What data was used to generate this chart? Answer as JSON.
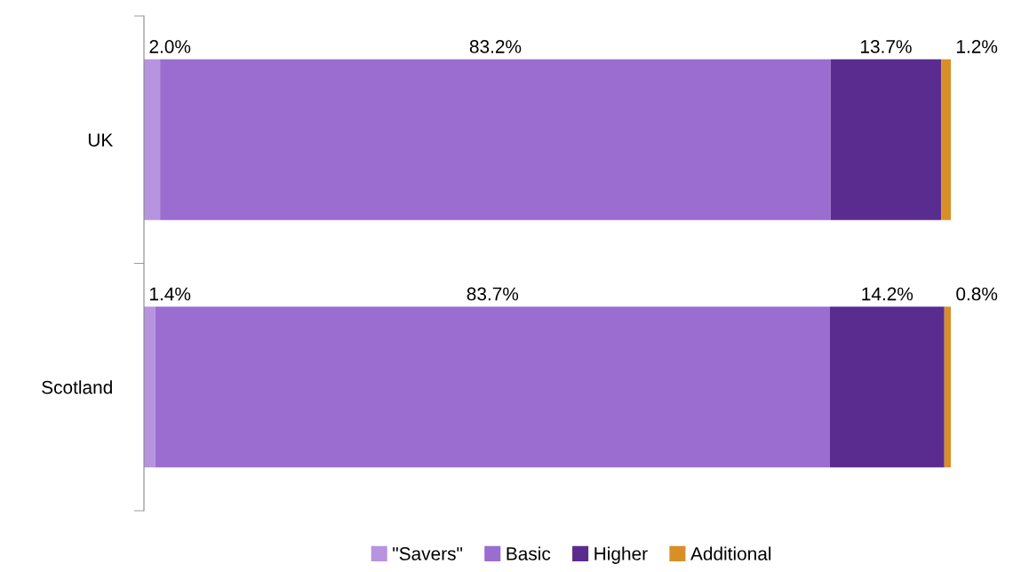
{
  "chart_data": {
    "type": "bar",
    "orientation": "horizontal",
    "stacked": true,
    "categories": [
      "UK",
      "Scotland"
    ],
    "legend": "bottom",
    "series": [
      {
        "name": "\"Savers\"",
        "color": "#b794e0",
        "values": [
          2.0,
          1.4
        ],
        "value_labels": [
          "2.0%",
          "1.4%"
        ]
      },
      {
        "name": "Basic",
        "color": "#9b6dd1",
        "values": [
          83.2,
          83.7
        ],
        "value_labels": [
          "83.2%",
          "83.7%"
        ]
      },
      {
        "name": "Higher",
        "color": "#5b2c8f",
        "values": [
          13.7,
          14.2
        ],
        "value_labels": [
          "13.7%",
          "14.2%"
        ]
      },
      {
        "name": "Additional",
        "color": "#d98f27",
        "values": [
          1.2,
          0.8
        ],
        "value_labels": [
          "1.2%",
          "0.8%"
        ]
      }
    ]
  }
}
